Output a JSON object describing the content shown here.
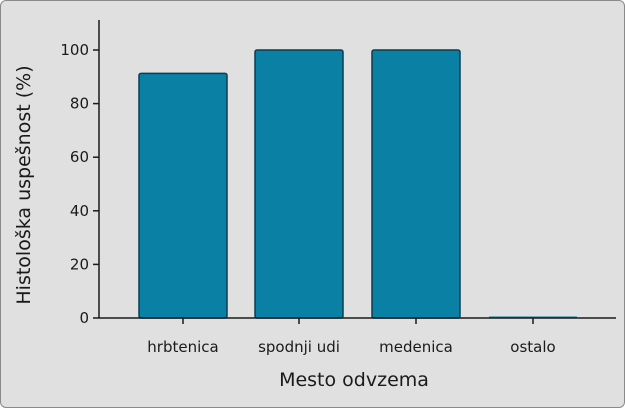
{
  "chart_data": {
    "type": "bar",
    "categories": [
      "hrbtenica",
      "spodnji udi",
      "medenica",
      "ostalo"
    ],
    "values": [
      91.3,
      100,
      100,
      0
    ],
    "xlabel": "Mesto odvzema",
    "ylabel": "Histološka uspešnost (%)",
    "ylim": [
      0,
      110
    ],
    "yticks": [
      0,
      20,
      40,
      60,
      80,
      100
    ],
    "grid": false,
    "colors": {
      "bar_fill": "#0a80a4",
      "bar_stroke": "#0b3d52",
      "axis": "#1a1a1a",
      "background": "#e0e0e0"
    }
  }
}
